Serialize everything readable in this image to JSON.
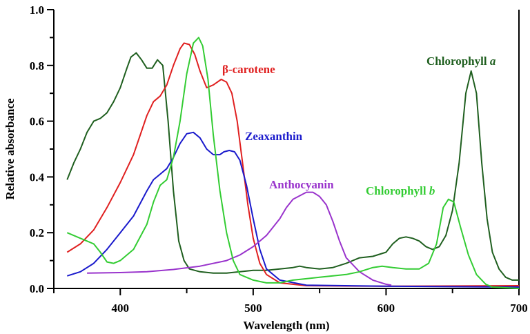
{
  "chart_data": {
    "type": "line",
    "title": "",
    "xlabel": "Wavelength (nm)",
    "ylabel": "Relative absorbance",
    "xlim": [
      350,
      700
    ],
    "ylim": [
      0,
      1.0
    ],
    "xticks": [
      400,
      500,
      600,
      700
    ],
    "yticks": [
      "0.0",
      "0.2",
      "0.4",
      "0.6",
      "0.8",
      "1.0"
    ],
    "grid": false,
    "series": [
      {
        "name": "Chlorophyll a",
        "label_main": "Chlorophyll ",
        "label_italic": "a",
        "color": "#1f5f1f",
        "x": [
          360,
          365,
          370,
          375,
          380,
          385,
          390,
          395,
          400,
          405,
          408,
          412,
          416,
          420,
          424,
          428,
          432,
          436,
          440,
          444,
          448,
          452,
          460,
          470,
          480,
          490,
          500,
          510,
          520,
          530,
          535,
          540,
          550,
          560,
          570,
          580,
          590,
          600,
          605,
          610,
          615,
          620,
          625,
          630,
          635,
          640,
          645,
          650,
          655,
          660,
          664,
          668,
          672,
          676,
          680,
          685,
          690,
          695,
          700
        ],
        "y": [
          0.39,
          0.45,
          0.5,
          0.56,
          0.6,
          0.61,
          0.63,
          0.67,
          0.72,
          0.79,
          0.83,
          0.845,
          0.82,
          0.79,
          0.79,
          0.82,
          0.8,
          0.6,
          0.35,
          0.17,
          0.1,
          0.07,
          0.06,
          0.055,
          0.055,
          0.06,
          0.065,
          0.065,
          0.07,
          0.075,
          0.08,
          0.075,
          0.07,
          0.075,
          0.09,
          0.11,
          0.115,
          0.13,
          0.16,
          0.18,
          0.185,
          0.18,
          0.17,
          0.15,
          0.14,
          0.15,
          0.19,
          0.28,
          0.45,
          0.7,
          0.78,
          0.7,
          0.45,
          0.25,
          0.13,
          0.07,
          0.04,
          0.03,
          0.03
        ]
      },
      {
        "name": "β-carotene",
        "label_main": "β-carotene",
        "label_italic": "",
        "color": "#e02020",
        "x": [
          360,
          370,
          380,
          390,
          400,
          410,
          420,
          425,
          430,
          435,
          440,
          445,
          448,
          452,
          456,
          460,
          465,
          470,
          476,
          480,
          484,
          488,
          492,
          496,
          500,
          505,
          510,
          520,
          540,
          600,
          700
        ],
        "y": [
          0.13,
          0.16,
          0.21,
          0.29,
          0.38,
          0.48,
          0.62,
          0.67,
          0.69,
          0.73,
          0.8,
          0.86,
          0.88,
          0.875,
          0.84,
          0.78,
          0.72,
          0.73,
          0.75,
          0.74,
          0.7,
          0.6,
          0.45,
          0.3,
          0.18,
          0.09,
          0.05,
          0.02,
          0.01,
          0.008,
          0.01
        ]
      },
      {
        "name": "Zeaxanthin",
        "label_main": "Zeaxanthin",
        "label_italic": "",
        "color": "#1a1acc",
        "x": [
          360,
          370,
          380,
          390,
          400,
          410,
          420,
          425,
          430,
          435,
          440,
          445,
          450,
          455,
          460,
          465,
          470,
          475,
          478,
          482,
          486,
          490,
          495,
          500,
          505,
          510,
          520,
          540,
          600,
          700
        ],
        "y": [
          0.045,
          0.06,
          0.09,
          0.14,
          0.2,
          0.26,
          0.35,
          0.39,
          0.41,
          0.43,
          0.47,
          0.52,
          0.555,
          0.56,
          0.54,
          0.5,
          0.48,
          0.48,
          0.49,
          0.495,
          0.49,
          0.46,
          0.37,
          0.25,
          0.14,
          0.07,
          0.03,
          0.012,
          0.008,
          0.005
        ]
      },
      {
        "name": "Anthocyanin",
        "label_main": "Anthocyanin",
        "label_italic": "",
        "color": "#9933cc",
        "x": [
          375,
          400,
          420,
          440,
          460,
          480,
          490,
          500,
          510,
          520,
          525,
          530,
          540,
          545,
          550,
          555,
          560,
          565,
          570,
          580,
          590,
          600,
          604
        ],
        "y": [
          0.055,
          0.057,
          0.06,
          0.068,
          0.08,
          0.1,
          0.12,
          0.15,
          0.19,
          0.25,
          0.29,
          0.32,
          0.345,
          0.345,
          0.33,
          0.3,
          0.24,
          0.17,
          0.11,
          0.06,
          0.03,
          0.015,
          0.012
        ]
      },
      {
        "name": "Chlorophyll b",
        "label_main": "Chlorophyll ",
        "label_italic": "b",
        "color": "#33cc33",
        "x": [
          360,
          370,
          380,
          385,
          390,
          395,
          400,
          410,
          420,
          425,
          430,
          435,
          440,
          445,
          450,
          455,
          459,
          462,
          466,
          470,
          475,
          480,
          485,
          490,
          500,
          510,
          520,
          530,
          540,
          550,
          560,
          570,
          580,
          590,
          597,
          605,
          615,
          625,
          632,
          638,
          643,
          647,
          651,
          656,
          662,
          668,
          675,
          680,
          700
        ],
        "y": [
          0.2,
          0.18,
          0.16,
          0.13,
          0.095,
          0.09,
          0.1,
          0.14,
          0.23,
          0.31,
          0.37,
          0.39,
          0.47,
          0.6,
          0.77,
          0.88,
          0.9,
          0.87,
          0.75,
          0.55,
          0.35,
          0.2,
          0.1,
          0.05,
          0.03,
          0.02,
          0.02,
          0.03,
          0.035,
          0.04,
          0.045,
          0.05,
          0.06,
          0.075,
          0.08,
          0.075,
          0.07,
          0.07,
          0.09,
          0.16,
          0.29,
          0.32,
          0.31,
          0.22,
          0.12,
          0.05,
          0.015,
          0.005,
          0.0
        ]
      }
    ]
  }
}
